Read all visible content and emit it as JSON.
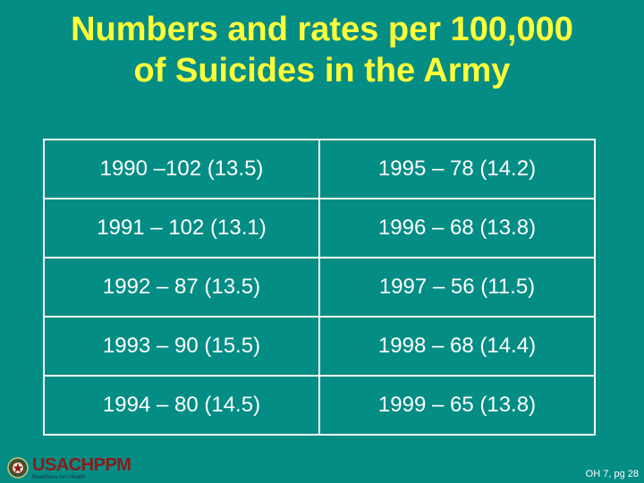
{
  "title": {
    "line1": "Numbers and rates per 100,000",
    "line2": "of Suicides in the Army"
  },
  "table": {
    "rows": [
      [
        "1990 –102 (13.5)",
        "1995 – 78 (14.2)"
      ],
      [
        "1991 – 102 (13.1)",
        "1996 – 68 (13.8)"
      ],
      [
        "1992 – 87 (13.5)",
        "1997 – 56 (11.5)"
      ],
      [
        "1993 – 90 (15.5)",
        "1998 – 68 (14.4)"
      ],
      [
        "1994 – 80 (14.5)",
        "1999 – 65 (13.8)"
      ]
    ]
  },
  "logo": {
    "text": "USACHPPM",
    "tagline": "Readiness thru Health"
  },
  "footer": {
    "ref": "OH 7, pg 28"
  },
  "colors": {
    "background": "#048d84",
    "title": "#ffff3a",
    "text": "#ffffff",
    "logo": "#8b1a1a"
  }
}
